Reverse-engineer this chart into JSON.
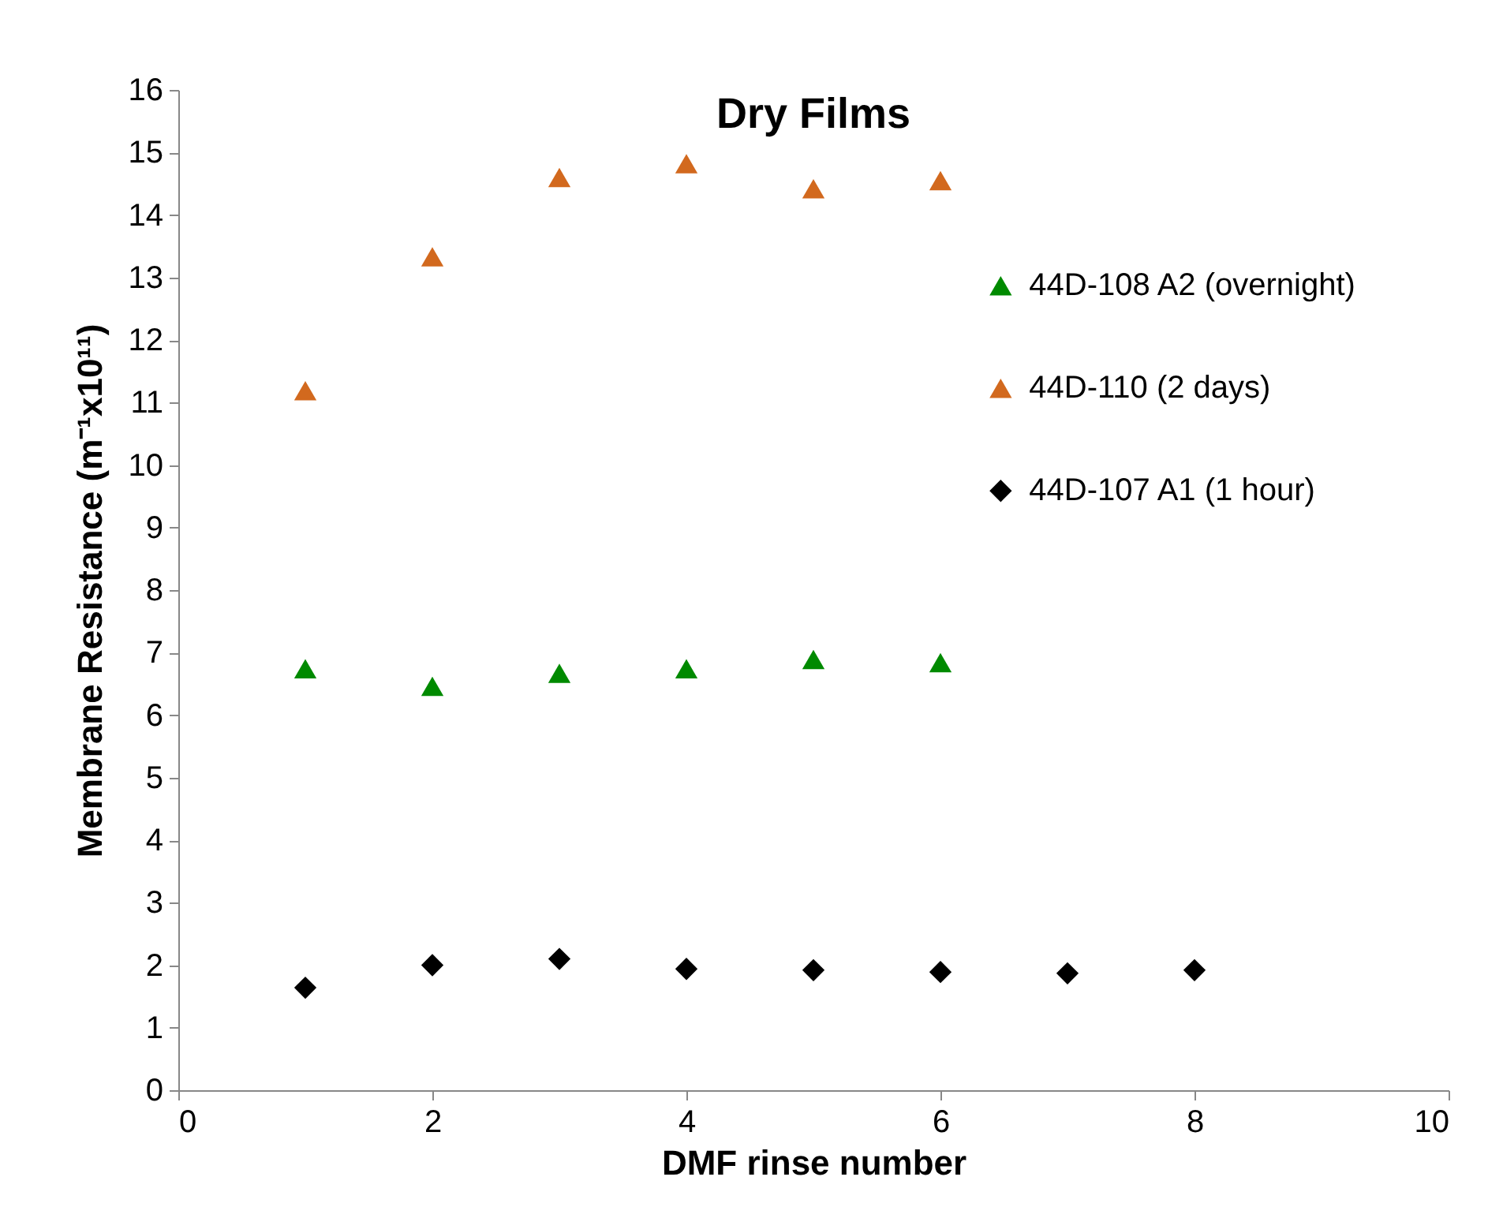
{
  "chart_data": {
    "type": "scatter",
    "title": "Dry Films",
    "xlabel": "DMF rinse number",
    "ylabel": "Membrane Resistance (m⁻¹x10¹¹)",
    "xlim": [
      0,
      10
    ],
    "xticks": [
      0,
      2,
      4,
      6,
      8,
      10
    ],
    "ylim": [
      0,
      16
    ],
    "yticks": [
      0,
      1,
      2,
      3,
      4,
      5,
      6,
      7,
      8,
      9,
      10,
      11,
      12,
      13,
      14,
      15,
      16
    ],
    "grid": false,
    "legend": "top right",
    "series": [
      {
        "name": "44D-108 A2 (overnight)",
        "color": "#008a00",
        "marker": "triangle",
        "x": [
          1,
          2,
          3,
          4,
          5,
          6
        ],
        "values": [
          6.74,
          6.46,
          6.67,
          6.74,
          6.89,
          6.84
        ]
      },
      {
        "name": "44D-110 (2 days)",
        "color": "#d2691e",
        "marker": "triangle",
        "x": [
          1,
          2,
          3,
          4,
          5,
          6
        ],
        "values": [
          11.19,
          13.33,
          14.6,
          14.82,
          14.42,
          14.55
        ]
      },
      {
        "name": "44D-107 A1 (1 hour)",
        "color": "#000000",
        "marker": "diamond",
        "x": [
          1,
          2,
          3,
          4,
          5,
          6,
          7,
          8
        ],
        "values": [
          1.64,
          2.0,
          2.1,
          1.94,
          1.92,
          1.89,
          1.87,
          1.92
        ]
      }
    ]
  }
}
